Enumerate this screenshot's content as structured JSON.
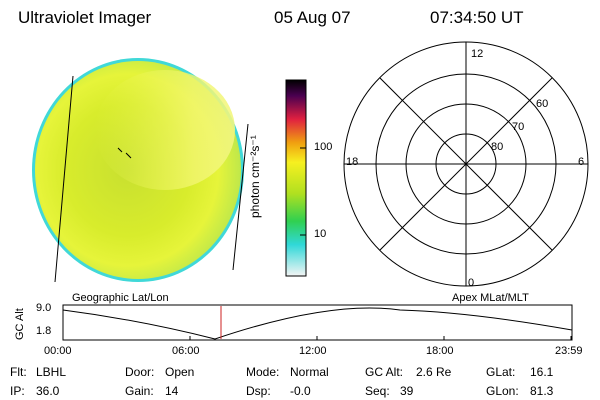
{
  "header": {
    "instrument": "Ultraviolet Imager",
    "date": "05 Aug 07",
    "time": "07:34:50 UT"
  },
  "colorbar": {
    "unit_label": "photon cm⁻²s⁻¹",
    "ticks": [
      "100",
      "10"
    ]
  },
  "polar_plot": {
    "mlt_labels": [
      "12",
      "18",
      "6",
      "0"
    ],
    "lat_labels": [
      "60",
      "70",
      "80"
    ]
  },
  "timeline": {
    "left_title": "Geographic Lat/Lon",
    "right_title": "Apex MLat/MLT",
    "axis_label": "GC Alt",
    "y_ticks": [
      "9.0",
      "1.8"
    ],
    "x_ticks": [
      "00:00",
      "06:00",
      "12:00",
      "18:00",
      "23:59"
    ],
    "marker_time": "07:34:50"
  },
  "footer": {
    "row1": [
      {
        "label": "Flt:",
        "value": "LBHL"
      },
      {
        "label": "Door:",
        "value": "Open"
      },
      {
        "label": "Mode:",
        "value": "Normal"
      },
      {
        "label": "GC Alt:",
        "value": "2.6 Re"
      },
      {
        "label": "GLat:",
        "value": "16.1"
      }
    ],
    "row2": [
      {
        "label": "IP:",
        "value": "36.0"
      },
      {
        "label": "Gain:",
        "value": "14"
      },
      {
        "label": "Dsp:",
        "value": "-0.0"
      },
      {
        "label": "Seq:",
        "value": "39"
      },
      {
        "label": "GLon:",
        "value": "81.3"
      }
    ]
  },
  "colors": {
    "marker": "#cc2222",
    "disk_main": "#d8ec2c",
    "disk_edge": "#40d8d8"
  }
}
